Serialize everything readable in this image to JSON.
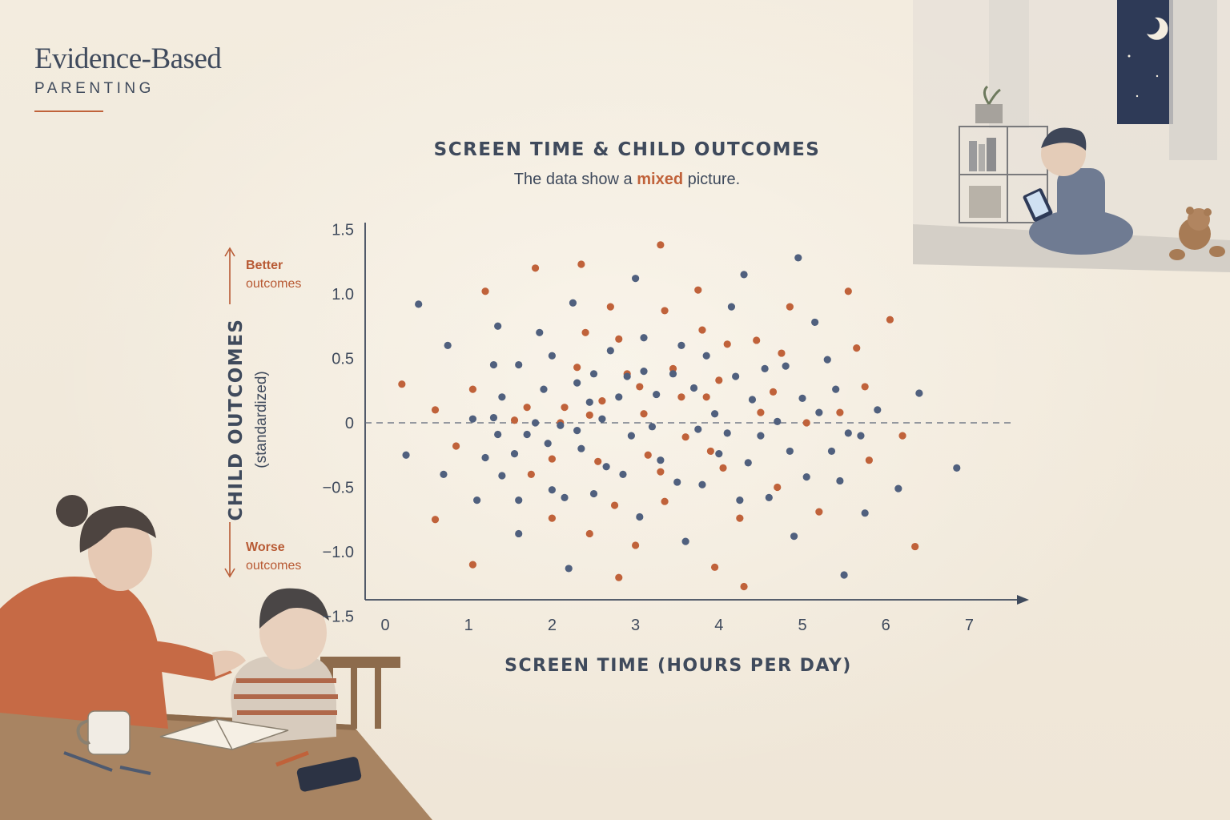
{
  "brand": {
    "title": "Evidence-Based",
    "subtitle": "PARENTING",
    "accent": "#c0623a"
  },
  "subtitle_parts": {
    "before": "The data show a ",
    "highlight": "mixed",
    "after": " picture."
  },
  "annotations": {
    "better_bold": "Better",
    "better_rest": "outcomes",
    "worse_bold": "Worse",
    "worse_rest": "outcomes"
  },
  "illustrations": {
    "top_right": "boy-using-tablet-illustration",
    "bottom_left": "mother-and-child-at-table-illustration"
  },
  "colors": {
    "text": "#3f4a5c",
    "orange": "#c0623a",
    "blue": "#50607e",
    "background": "#f1e9dc"
  },
  "chart_data": {
    "type": "scatter",
    "title": "SCREEN TIME & CHILD OUTCOMES",
    "subtitle": "The data show a mixed picture.",
    "xlabel": "SCREEN TIME (HOURS PER DAY)",
    "ylabel": "CHILD OUTCOMES",
    "ylabel_sub": "(standardized)",
    "xlim": [
      0,
      7.5
    ],
    "ylim": [
      -1.5,
      1.5
    ],
    "xticks": [
      0,
      1,
      2,
      3,
      4,
      5,
      6,
      7
    ],
    "yticks": [
      1.5,
      1.0,
      0.5,
      0,
      -0.5,
      -1.0,
      -1.5
    ],
    "ytick_labels": [
      "1.5",
      "1.0",
      "0.5",
      "0",
      "−0.5",
      "−1.0",
      "−1.5"
    ],
    "reference_line": 0,
    "grid": false,
    "series": [
      {
        "color": "#c0623a",
        "points": [
          [
            0.2,
            0.3
          ],
          [
            0.6,
            0.1
          ],
          [
            0.6,
            -0.75
          ],
          [
            0.85,
            -0.18
          ],
          [
            1.05,
            0.26
          ],
          [
            1.05,
            -1.1
          ],
          [
            1.2,
            1.02
          ],
          [
            1.7,
            0.12
          ],
          [
            1.75,
            -0.4
          ],
          [
            1.8,
            1.2
          ],
          [
            2.0,
            -0.28
          ],
          [
            2.0,
            -0.74
          ],
          [
            2.15,
            0.12
          ],
          [
            2.3,
            0.43
          ],
          [
            2.35,
            1.23
          ],
          [
            2.4,
            0.7
          ],
          [
            2.45,
            -0.86
          ],
          [
            2.55,
            -0.3
          ],
          [
            2.6,
            0.17
          ],
          [
            2.7,
            0.9
          ],
          [
            2.75,
            -0.64
          ],
          [
            2.8,
            0.65
          ],
          [
            2.8,
            -1.2
          ],
          [
            2.9,
            0.38
          ],
          [
            3.0,
            -0.95
          ],
          [
            3.05,
            0.28
          ],
          [
            3.1,
            0.07
          ],
          [
            3.3,
            1.38
          ],
          [
            3.35,
            0.87
          ],
          [
            3.35,
            -0.61
          ],
          [
            3.55,
            0.2
          ],
          [
            3.6,
            -0.11
          ],
          [
            3.75,
            1.03
          ],
          [
            3.8,
            0.72
          ],
          [
            3.9,
            -0.22
          ],
          [
            3.95,
            -1.12
          ],
          [
            4.0,
            0.33
          ],
          [
            4.1,
            0.61
          ],
          [
            4.25,
            -0.74
          ],
          [
            4.3,
            -1.27
          ],
          [
            4.45,
            0.64
          ],
          [
            4.5,
            0.08
          ],
          [
            4.65,
            0.24
          ],
          [
            4.75,
            0.54
          ],
          [
            4.85,
            0.9
          ],
          [
            5.05,
            0.0
          ],
          [
            5.2,
            -0.69
          ],
          [
            5.45,
            0.08
          ],
          [
            5.55,
            1.02
          ],
          [
            5.65,
            0.58
          ],
          [
            5.75,
            0.28
          ],
          [
            5.8,
            -0.29
          ],
          [
            6.05,
            0.8
          ],
          [
            6.2,
            -0.1
          ],
          [
            6.35,
            -0.96
          ],
          [
            4.7,
            -0.5
          ],
          [
            3.3,
            -0.38
          ],
          [
            2.1,
            0.0
          ],
          [
            1.55,
            0.02
          ],
          [
            4.05,
            -0.35
          ],
          [
            3.45,
            0.42
          ],
          [
            2.45,
            0.06
          ],
          [
            3.85,
            0.2
          ],
          [
            3.15,
            -0.25
          ]
        ]
      },
      {
        "color": "#50607e",
        "points": [
          [
            0.25,
            -0.25
          ],
          [
            0.4,
            0.92
          ],
          [
            0.75,
            0.6
          ],
          [
            0.7,
            -0.4
          ],
          [
            1.05,
            0.03
          ],
          [
            1.1,
            -0.6
          ],
          [
            1.2,
            -0.27
          ],
          [
            1.3,
            0.45
          ],
          [
            1.3,
            0.04
          ],
          [
            1.35,
            0.75
          ],
          [
            1.35,
            -0.09
          ],
          [
            1.4,
            0.2
          ],
          [
            1.4,
            -0.41
          ],
          [
            1.55,
            -0.24
          ],
          [
            1.6,
            0.45
          ],
          [
            1.6,
            -0.6
          ],
          [
            1.6,
            -0.86
          ],
          [
            1.7,
            -0.09
          ],
          [
            1.8,
            0.0
          ],
          [
            1.85,
            0.7
          ],
          [
            1.9,
            0.26
          ],
          [
            1.95,
            -0.16
          ],
          [
            2.0,
            0.52
          ],
          [
            2.0,
            -0.52
          ],
          [
            2.1,
            -0.02
          ],
          [
            2.15,
            -0.58
          ],
          [
            2.2,
            -1.13
          ],
          [
            2.25,
            0.93
          ],
          [
            2.3,
            0.31
          ],
          [
            2.3,
            -0.06
          ],
          [
            2.35,
            -0.2
          ],
          [
            2.45,
            0.16
          ],
          [
            2.5,
            0.38
          ],
          [
            2.5,
            -0.55
          ],
          [
            2.6,
            0.03
          ],
          [
            2.65,
            -0.34
          ],
          [
            2.7,
            0.56
          ],
          [
            2.8,
            0.2
          ],
          [
            2.85,
            -0.4
          ],
          [
            2.9,
            0.36
          ],
          [
            2.95,
            -0.1
          ],
          [
            3.0,
            1.12
          ],
          [
            3.05,
            -0.73
          ],
          [
            3.1,
            0.66
          ],
          [
            3.1,
            0.4
          ],
          [
            3.2,
            -0.03
          ],
          [
            3.25,
            0.22
          ],
          [
            3.3,
            -0.29
          ],
          [
            3.45,
            0.38
          ],
          [
            3.5,
            -0.46
          ],
          [
            3.55,
            0.6
          ],
          [
            3.6,
            -0.92
          ],
          [
            3.7,
            0.27
          ],
          [
            3.75,
            -0.05
          ],
          [
            3.8,
            -0.48
          ],
          [
            3.85,
            0.52
          ],
          [
            3.95,
            0.07
          ],
          [
            4.0,
            -0.24
          ],
          [
            4.1,
            -0.08
          ],
          [
            4.15,
            0.9
          ],
          [
            4.2,
            0.36
          ],
          [
            4.25,
            -0.6
          ],
          [
            4.3,
            1.15
          ],
          [
            4.35,
            -0.31
          ],
          [
            4.4,
            0.18
          ],
          [
            4.5,
            -0.1
          ],
          [
            4.55,
            0.42
          ],
          [
            4.6,
            -0.58
          ],
          [
            4.7,
            0.01
          ],
          [
            4.8,
            0.44
          ],
          [
            4.85,
            -0.22
          ],
          [
            4.9,
            -0.88
          ],
          [
            4.95,
            1.28
          ],
          [
            5.0,
            0.19
          ],
          [
            5.05,
            -0.42
          ],
          [
            5.15,
            0.78
          ],
          [
            5.2,
            0.08
          ],
          [
            5.3,
            0.49
          ],
          [
            5.35,
            -0.22
          ],
          [
            5.4,
            0.26
          ],
          [
            5.45,
            -0.45
          ],
          [
            5.5,
            -1.18
          ],
          [
            5.55,
            -0.08
          ],
          [
            5.7,
            -0.1
          ],
          [
            5.75,
            -0.7
          ],
          [
            5.9,
            0.1
          ],
          [
            6.15,
            -0.51
          ],
          [
            6.4,
            0.23
          ],
          [
            6.85,
            -0.35
          ]
        ]
      }
    ]
  }
}
